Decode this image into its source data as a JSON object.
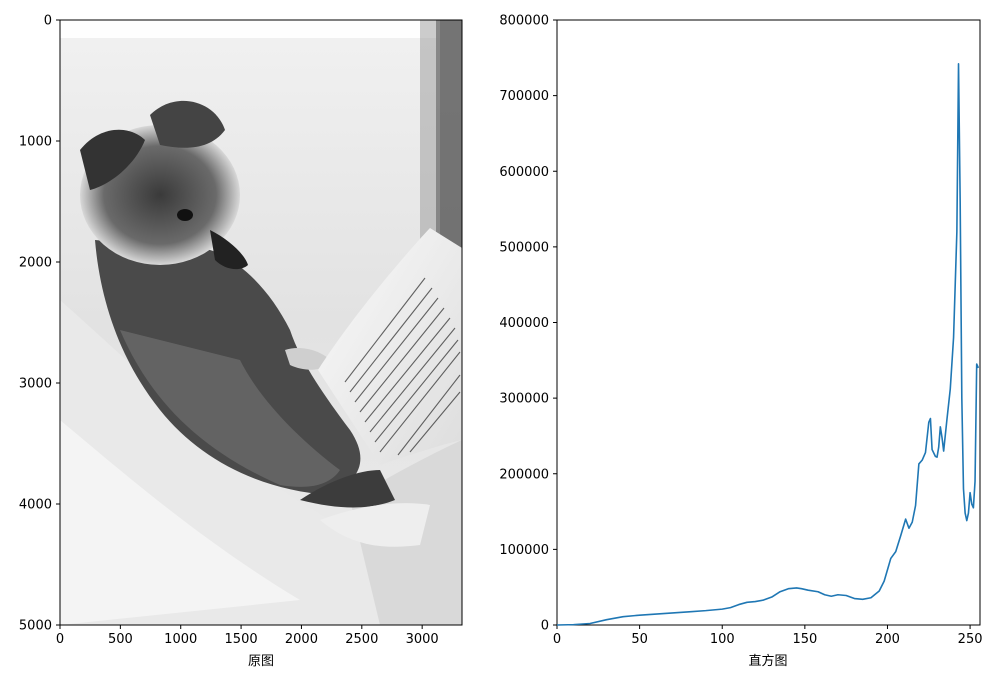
{
  "chart_data": [
    {
      "type": "image",
      "xlabel": "原图",
      "xlim": [
        0,
        3330
      ],
      "ylim": [
        5000,
        0
      ],
      "xticks": [
        0,
        500,
        1000,
        1500,
        2000,
        2500,
        3000
      ],
      "yticks": [
        0,
        1000,
        2000,
        3000,
        4000,
        5000
      ],
      "image_content": "grayscale"
    },
    {
      "type": "line",
      "xlabel": "直方图",
      "xlim": [
        0,
        256
      ],
      "ylim": [
        0,
        800000
      ],
      "xticks": [
        0,
        50,
        100,
        150,
        200,
        250
      ],
      "yticks": [
        0,
        100000,
        200000,
        300000,
        400000,
        500000,
        600000,
        700000,
        800000
      ],
      "line_color": "#1f77b4",
      "series": [
        {
          "x": [
            0,
            10,
            20,
            30,
            40,
            50,
            60,
            70,
            80,
            90,
            100,
            105,
            110,
            115,
            120,
            125,
            130,
            135,
            140,
            145,
            148,
            152,
            158,
            162,
            166,
            170,
            175,
            180,
            185,
            190,
            195,
            198,
            202,
            205,
            208,
            211,
            213,
            215,
            217,
            219,
            221,
            223,
            225,
            226,
            227,
            229,
            230,
            231,
            232,
            233,
            234,
            236,
            238,
            240,
            242,
            243,
            244,
            245,
            246,
            247,
            248,
            249,
            250,
            251,
            252,
            253,
            254,
            255
          ],
          "y": [
            0,
            500,
            2000,
            7000,
            11000,
            13000,
            14500,
            16000,
            17500,
            19000,
            21000,
            23000,
            27000,
            30000,
            31000,
            33000,
            37000,
            44000,
            48000,
            49000,
            48000,
            46000,
            44000,
            40000,
            38000,
            40000,
            39000,
            35000,
            34000,
            36000,
            45000,
            58000,
            88000,
            97000,
            118000,
            140000,
            128000,
            136000,
            158000,
            213000,
            218000,
            228000,
            268000,
            273000,
            232000,
            223000,
            222000,
            235000,
            262000,
            248000,
            230000,
            272000,
            312000,
            380000,
            520000,
            742000,
            560000,
            300000,
            180000,
            148000,
            138000,
            148000,
            175000,
            160000,
            155000,
            190000,
            345000,
            340000
          ]
        }
      ]
    }
  ]
}
